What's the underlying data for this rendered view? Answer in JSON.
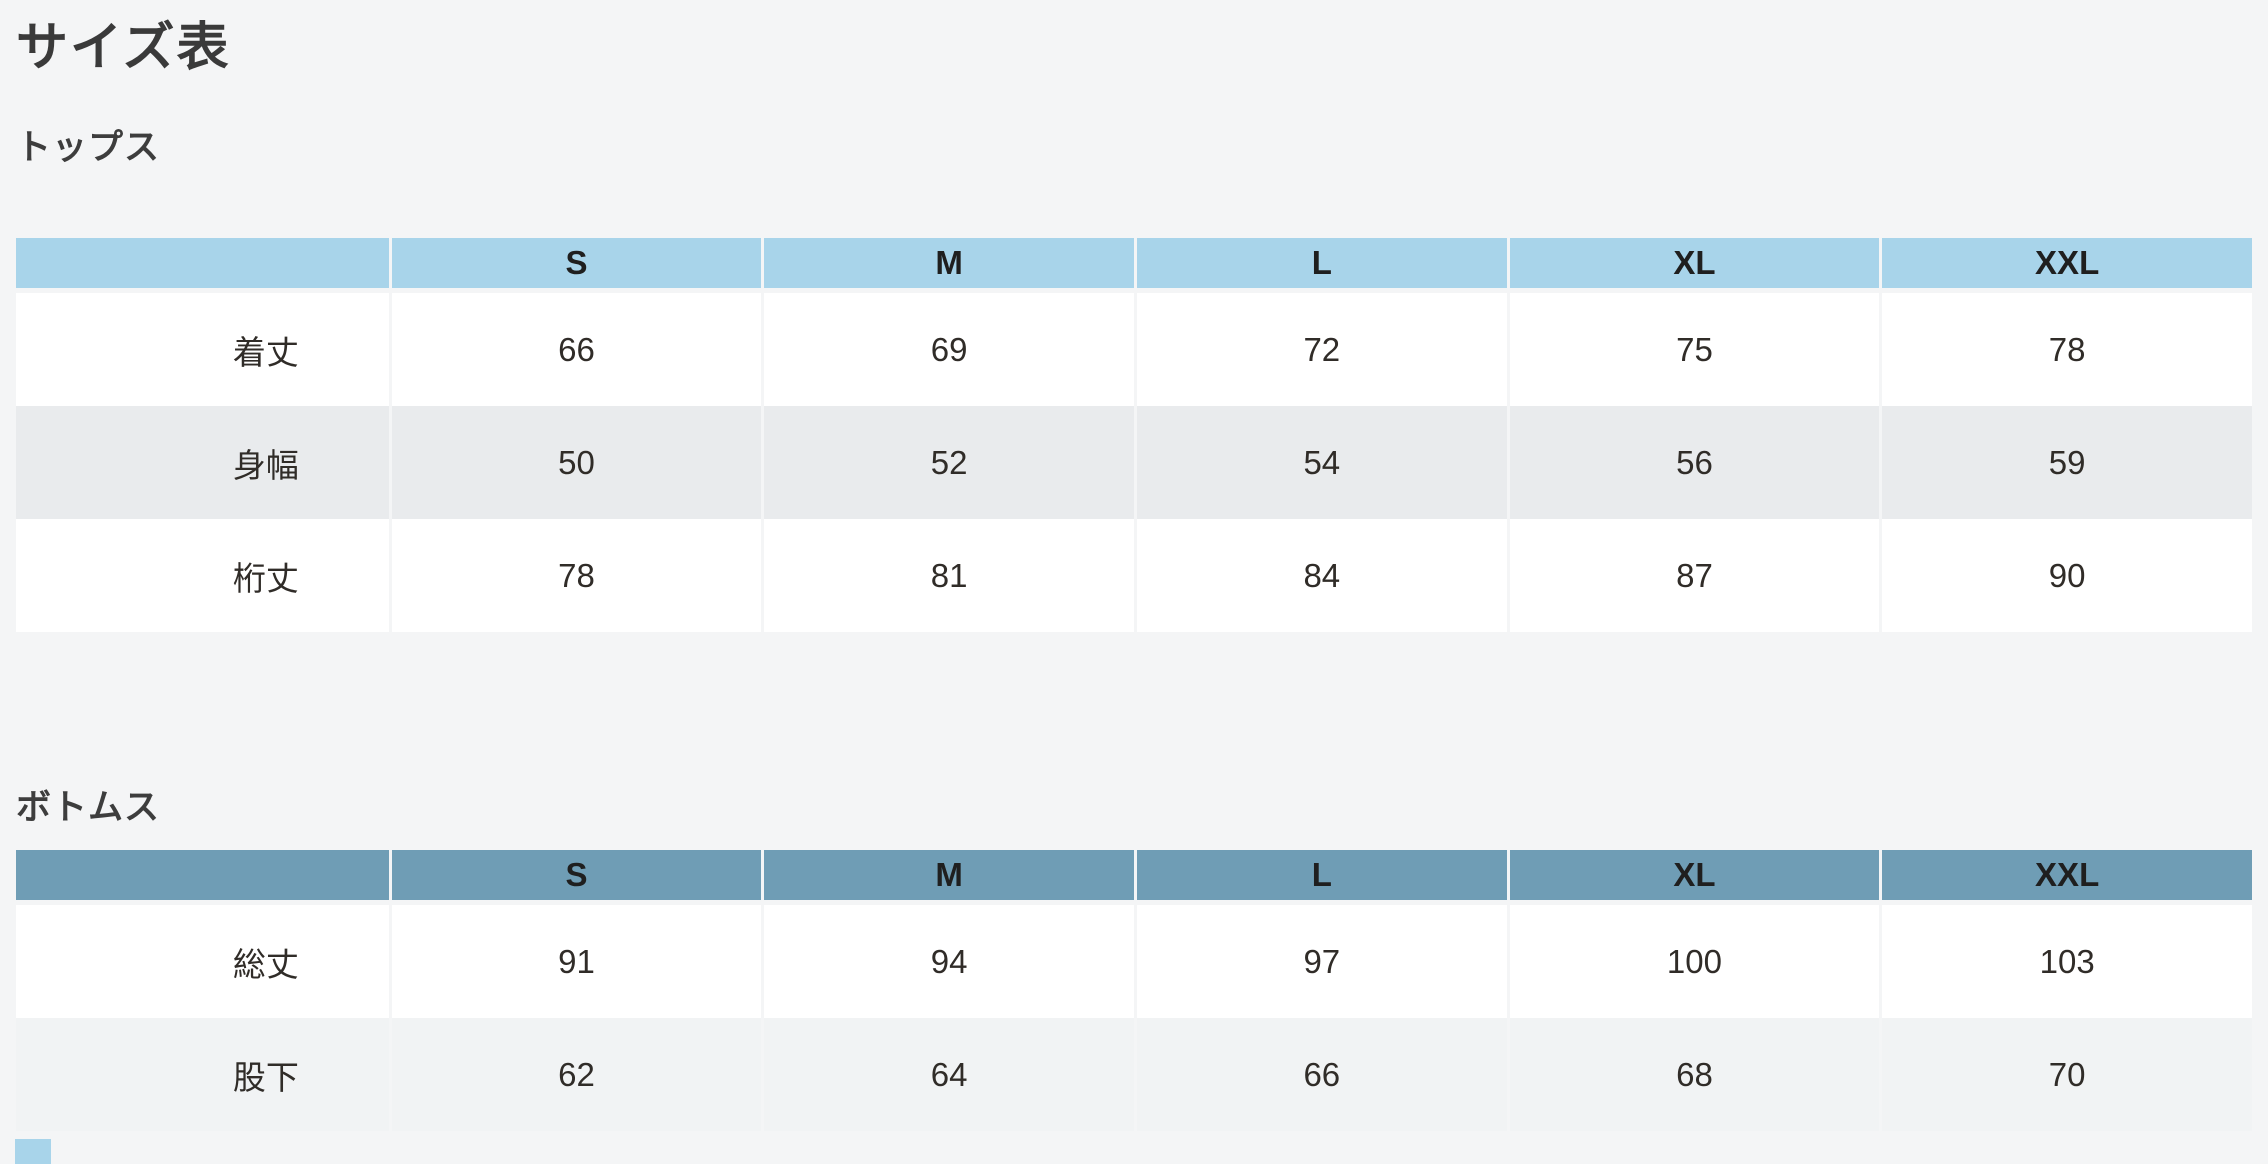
{
  "page": {
    "title": "サイズ表",
    "background_color": "#f4f5f6",
    "text_color": "#302c28"
  },
  "sections": [
    {
      "heading": "トップス",
      "header_color": "#a8d4ea",
      "alt_row_color": "#e9ebed",
      "columns": [
        "S",
        "M",
        "L",
        "XL",
        "XXL"
      ],
      "rows": [
        {
          "label": "着丈",
          "values": [
            "66",
            "69",
            "72",
            "75",
            "78"
          ]
        },
        {
          "label": "身幅",
          "values": [
            "50",
            "52",
            "54",
            "56",
            "59"
          ]
        },
        {
          "label": "桁丈",
          "values": [
            "78",
            "81",
            "84",
            "87",
            "90"
          ]
        }
      ]
    },
    {
      "heading": "ボトムス",
      "header_color": "#6f9db5",
      "alt_row_color": "#f1f3f4",
      "columns": [
        "S",
        "M",
        "L",
        "XL",
        "XXL"
      ],
      "rows": [
        {
          "label": "総丈",
          "values": [
            "91",
            "94",
            "97",
            "100",
            "103"
          ]
        },
        {
          "label": "股下",
          "values": [
            "62",
            "64",
            "66",
            "68",
            "70"
          ]
        }
      ]
    }
  ]
}
